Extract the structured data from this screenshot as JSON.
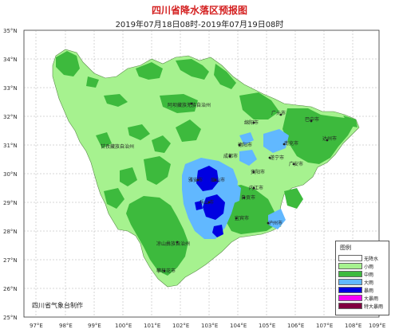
{
  "header": {
    "title": "四川省降水落区预报图",
    "subtitle": "2019年07月18日08时-2019年07月19日08时"
  },
  "axes": {
    "lat_labels": [
      "35°N",
      "34°N",
      "33°N",
      "32°N",
      "31°N",
      "30°N",
      "29°N",
      "28°N",
      "27°N",
      "26°N",
      "25°N"
    ],
    "lon_labels": [
      "97°E",
      "98°E",
      "99°E",
      "100°E",
      "101°E",
      "102°E",
      "103°E",
      "104°E",
      "105°E",
      "106°E",
      "107°E",
      "108°E",
      "109°E"
    ]
  },
  "cities": [
    {
      "name": "广元市"
    },
    {
      "name": "巴中市"
    },
    {
      "name": "阿坝藏族羌族自治州"
    },
    {
      "name": "绵阳市"
    },
    {
      "name": "南充市"
    },
    {
      "name": "达州市"
    },
    {
      "name": "甘孜藏族自治州"
    },
    {
      "name": "德阳市"
    },
    {
      "name": "成都市"
    },
    {
      "name": "遂宁市"
    },
    {
      "name": "广安市"
    },
    {
      "name": "雅安市"
    },
    {
      "name": "眉山市"
    },
    {
      "name": "资阳市"
    },
    {
      "name": "内江市"
    },
    {
      "name": "乐山市"
    },
    {
      "name": "自贡市"
    },
    {
      "name": "宜宾市"
    },
    {
      "name": "泸州市"
    },
    {
      "name": "凉山彝族自治州"
    },
    {
      "name": "攀枝花市"
    }
  ],
  "legend": {
    "title": "图例",
    "items": [
      {
        "label": "无降水",
        "color": "#ffffff"
      },
      {
        "label": "小雨",
        "color": "#a6f28f"
      },
      {
        "label": "中雨",
        "color": "#3dba3d"
      },
      {
        "label": "大雨",
        "color": "#61b8ff"
      },
      {
        "label": "暴雨",
        "color": "#0000e1"
      },
      {
        "label": "大暴雨",
        "color": "#fa00fa"
      },
      {
        "label": "特大暴雨",
        "color": "#800040"
      }
    ]
  },
  "credit": "四川省气象台制作"
}
